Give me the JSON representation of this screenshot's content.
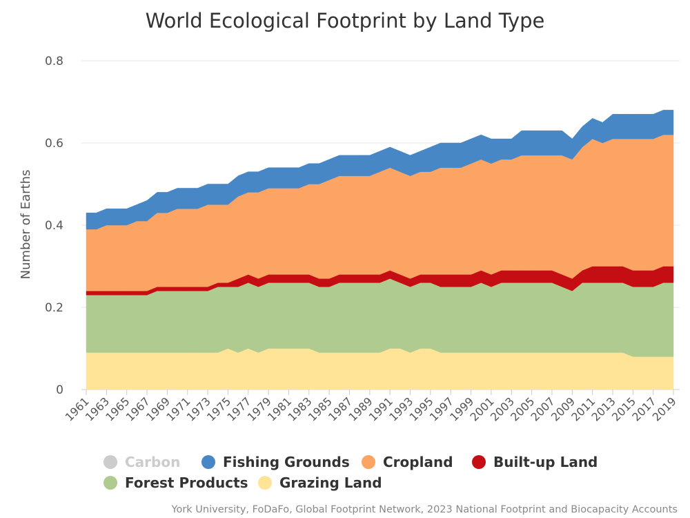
{
  "chart_data": {
    "type": "area",
    "stacked": true,
    "title": "World Ecological Footprint by Land Type",
    "ylabel": "Number of Earths",
    "xlabel": "",
    "ylim": [
      0,
      0.8
    ],
    "yticks": [
      0,
      0.2,
      0.4,
      0.6,
      0.8
    ],
    "ytick_labels": [
      "0",
      "0.2",
      "0.4",
      "0.6",
      "0.8"
    ],
    "grid": "horizontal",
    "legend_position": "bottom",
    "x": [
      1961,
      1962,
      1963,
      1964,
      1965,
      1966,
      1967,
      1968,
      1969,
      1970,
      1971,
      1972,
      1973,
      1974,
      1975,
      1976,
      1977,
      1978,
      1979,
      1980,
      1981,
      1982,
      1983,
      1984,
      1985,
      1986,
      1987,
      1988,
      1989,
      1990,
      1991,
      1992,
      1993,
      1994,
      1995,
      1996,
      1997,
      1998,
      1999,
      2000,
      2001,
      2002,
      2003,
      2004,
      2005,
      2006,
      2007,
      2008,
      2009,
      2010,
      2011,
      2012,
      2013,
      2014,
      2015,
      2016,
      2017,
      2018,
      2019
    ],
    "xtick_labels": [
      "1961",
      "1963",
      "1965",
      "1967",
      "1969",
      "1971",
      "1973",
      "1975",
      "1977",
      "1979",
      "1981",
      "1983",
      "1985",
      "1987",
      "1989",
      "1991",
      "1993",
      "1995",
      "1997",
      "1999",
      "2001",
      "2003",
      "2005",
      "2007",
      "2009",
      "2011",
      "2013",
      "2015",
      "2017",
      "2019"
    ],
    "series": [
      {
        "name": "Grazing Land",
        "color": "#ffe397",
        "values": [
          0.09,
          0.09,
          0.09,
          0.09,
          0.09,
          0.09,
          0.09,
          0.09,
          0.09,
          0.09,
          0.09,
          0.09,
          0.09,
          0.09,
          0.1,
          0.09,
          0.1,
          0.09,
          0.1,
          0.1,
          0.1,
          0.1,
          0.1,
          0.09,
          0.09,
          0.09,
          0.09,
          0.09,
          0.09,
          0.09,
          0.1,
          0.1,
          0.09,
          0.1,
          0.1,
          0.09,
          0.09,
          0.09,
          0.09,
          0.09,
          0.09,
          0.09,
          0.09,
          0.09,
          0.09,
          0.09,
          0.09,
          0.09,
          0.09,
          0.09,
          0.09,
          0.09,
          0.09,
          0.09,
          0.08,
          0.08,
          0.08,
          0.08,
          0.08
        ]
      },
      {
        "name": "Forest Products",
        "color": "#b0cb90",
        "values": [
          0.14,
          0.14,
          0.14,
          0.14,
          0.14,
          0.14,
          0.14,
          0.15,
          0.15,
          0.15,
          0.15,
          0.15,
          0.15,
          0.16,
          0.15,
          0.16,
          0.16,
          0.16,
          0.16,
          0.16,
          0.16,
          0.16,
          0.16,
          0.16,
          0.16,
          0.17,
          0.17,
          0.17,
          0.17,
          0.17,
          0.17,
          0.16,
          0.16,
          0.16,
          0.16,
          0.16,
          0.16,
          0.16,
          0.16,
          0.17,
          0.16,
          0.17,
          0.17,
          0.17,
          0.17,
          0.17,
          0.17,
          0.16,
          0.15,
          0.17,
          0.17,
          0.17,
          0.17,
          0.17,
          0.17,
          0.17,
          0.17,
          0.18,
          0.18
        ]
      },
      {
        "name": "Built-up Land",
        "color": "#c50e13",
        "values": [
          0.01,
          0.01,
          0.01,
          0.01,
          0.01,
          0.01,
          0.01,
          0.01,
          0.01,
          0.01,
          0.01,
          0.01,
          0.01,
          0.01,
          0.01,
          0.02,
          0.02,
          0.02,
          0.02,
          0.02,
          0.02,
          0.02,
          0.02,
          0.02,
          0.02,
          0.02,
          0.02,
          0.02,
          0.02,
          0.02,
          0.02,
          0.02,
          0.02,
          0.02,
          0.02,
          0.03,
          0.03,
          0.03,
          0.03,
          0.03,
          0.03,
          0.03,
          0.03,
          0.03,
          0.03,
          0.03,
          0.03,
          0.03,
          0.03,
          0.03,
          0.04,
          0.04,
          0.04,
          0.04,
          0.04,
          0.04,
          0.04,
          0.04,
          0.04
        ]
      },
      {
        "name": "Cropland",
        "color": "#fba464",
        "values": [
          0.15,
          0.15,
          0.16,
          0.16,
          0.16,
          0.17,
          0.17,
          0.18,
          0.18,
          0.19,
          0.19,
          0.19,
          0.2,
          0.19,
          0.19,
          0.2,
          0.2,
          0.21,
          0.21,
          0.21,
          0.21,
          0.21,
          0.22,
          0.23,
          0.24,
          0.24,
          0.24,
          0.24,
          0.24,
          0.25,
          0.25,
          0.25,
          0.25,
          0.25,
          0.25,
          0.26,
          0.26,
          0.26,
          0.27,
          0.27,
          0.27,
          0.27,
          0.27,
          0.28,
          0.28,
          0.28,
          0.28,
          0.29,
          0.29,
          0.3,
          0.31,
          0.3,
          0.31,
          0.31,
          0.32,
          0.32,
          0.32,
          0.32,
          0.32
        ]
      },
      {
        "name": "Fishing Grounds",
        "color": "#4787c6",
        "values": [
          0.04,
          0.04,
          0.04,
          0.04,
          0.04,
          0.04,
          0.05,
          0.05,
          0.05,
          0.05,
          0.05,
          0.05,
          0.05,
          0.05,
          0.05,
          0.05,
          0.05,
          0.05,
          0.05,
          0.05,
          0.05,
          0.05,
          0.05,
          0.05,
          0.05,
          0.05,
          0.05,
          0.05,
          0.05,
          0.05,
          0.05,
          0.05,
          0.05,
          0.05,
          0.06,
          0.06,
          0.06,
          0.06,
          0.06,
          0.06,
          0.06,
          0.05,
          0.05,
          0.06,
          0.06,
          0.06,
          0.06,
          0.06,
          0.05,
          0.05,
          0.05,
          0.05,
          0.06,
          0.06,
          0.06,
          0.06,
          0.06,
          0.06,
          0.06
        ]
      }
    ],
    "legend": [
      {
        "name": "Carbon",
        "color": "#cccccc",
        "hidden": true
      },
      {
        "name": "Fishing Grounds",
        "color": "#4787c6",
        "hidden": false
      },
      {
        "name": "Cropland",
        "color": "#fba464",
        "hidden": false
      },
      {
        "name": "Built-up Land",
        "color": "#c50e13",
        "hidden": false
      },
      {
        "name": "Forest Products",
        "color": "#b0cb90",
        "hidden": false
      },
      {
        "name": "Grazing Land",
        "color": "#ffe397",
        "hidden": false
      }
    ],
    "credits": "York University, FoDaFo, Global Footprint Network, 2023 National Footprint and Biocapacity Accounts"
  }
}
